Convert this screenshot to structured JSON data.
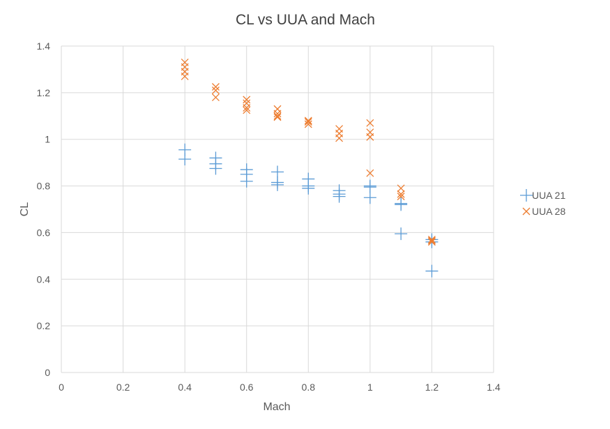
{
  "chart_data": {
    "type": "scatter",
    "title": "CL vs UUA and Mach",
    "xlabel": "Mach",
    "ylabel": "CL",
    "xlim": [
      0,
      1.4
    ],
    "ylim": [
      0,
      1.4
    ],
    "xticks": [
      "0",
      "0.2",
      "0.4",
      "0.6",
      "0.8",
      "1",
      "1.2",
      "1.4"
    ],
    "yticks": [
      "0",
      "0.2",
      "0.4",
      "0.6",
      "0.8",
      "1",
      "1.2",
      "1.4"
    ],
    "grid": true,
    "legend_position": "right",
    "series": [
      {
        "name": "UUA 21",
        "color": "#5b9bd5",
        "marker": "plus",
        "points": [
          [
            0.4,
            0.955
          ],
          [
            0.4,
            0.915
          ],
          [
            0.5,
            0.92
          ],
          [
            0.5,
            0.895
          ],
          [
            0.5,
            0.875
          ],
          [
            0.6,
            0.87
          ],
          [
            0.6,
            0.85
          ],
          [
            0.6,
            0.82
          ],
          [
            0.7,
            0.86
          ],
          [
            0.7,
            0.815
          ],
          [
            0.7,
            0.805
          ],
          [
            0.8,
            0.83
          ],
          [
            0.8,
            0.8
          ],
          [
            0.8,
            0.79
          ],
          [
            0.9,
            0.78
          ],
          [
            0.9,
            0.765
          ],
          [
            0.9,
            0.755
          ],
          [
            1.0,
            0.8
          ],
          [
            1.0,
            0.795
          ],
          [
            1.0,
            0.75
          ],
          [
            1.1,
            0.725
          ],
          [
            1.1,
            0.72
          ],
          [
            1.1,
            0.595
          ],
          [
            1.2,
            0.57
          ],
          [
            1.2,
            0.56
          ],
          [
            1.2,
            0.435
          ]
        ]
      },
      {
        "name": "UUA 28",
        "color": "#ed7d31",
        "marker": "x",
        "points": [
          [
            0.4,
            1.33
          ],
          [
            0.4,
            1.31
          ],
          [
            0.4,
            1.29
          ],
          [
            0.4,
            1.27
          ],
          [
            0.5,
            1.225
          ],
          [
            0.5,
            1.21
          ],
          [
            0.5,
            1.18
          ],
          [
            0.6,
            1.17
          ],
          [
            0.6,
            1.155
          ],
          [
            0.6,
            1.135
          ],
          [
            0.6,
            1.125
          ],
          [
            0.7,
            1.13
          ],
          [
            0.7,
            1.11
          ],
          [
            0.7,
            1.1
          ],
          [
            0.7,
            1.095
          ],
          [
            0.8,
            1.08
          ],
          [
            0.8,
            1.075
          ],
          [
            0.8,
            1.065
          ],
          [
            0.9,
            1.045
          ],
          [
            0.9,
            1.025
          ],
          [
            0.9,
            1.005
          ],
          [
            1.0,
            1.07
          ],
          [
            1.0,
            1.03
          ],
          [
            1.0,
            1.01
          ],
          [
            1.0,
            0.855
          ],
          [
            1.1,
            0.79
          ],
          [
            1.1,
            0.765
          ],
          [
            1.1,
            0.755
          ],
          [
            1.2,
            0.57
          ],
          [
            1.2,
            0.565
          ],
          [
            1.2,
            0.56
          ]
        ]
      }
    ]
  }
}
